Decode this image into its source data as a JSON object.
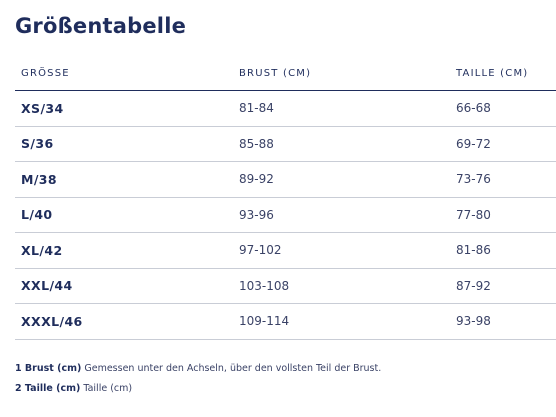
{
  "title": "Größentabelle",
  "table": {
    "headers": [
      "GRÖSSE",
      "BRUST (CM)",
      "TAILLE (CM)"
    ],
    "rows": [
      [
        "XS/34",
        "81-84",
        "66-68"
      ],
      [
        "S/36",
        "85-88",
        "69-72"
      ],
      [
        "M/38",
        "89-92",
        "73-76"
      ],
      [
        "L/40",
        "93-96",
        "77-80"
      ],
      [
        "XL/42",
        "97-102",
        "81-86"
      ],
      [
        "XXL/44",
        "103-108",
        "87-92"
      ],
      [
        "XXXL/46",
        "109-114",
        "93-98"
      ]
    ]
  },
  "footnotes": [
    {
      "key": "1 Brust (cm)",
      "text": "Gemessen unter den Achseln, über den vollsten Teil der Brust."
    },
    {
      "key": "2 Taille (cm)",
      "text": "Taille (cm)"
    }
  ],
  "colors": {
    "text_primary": "#1f2d5c",
    "row_divider": "#c9cdd6"
  }
}
